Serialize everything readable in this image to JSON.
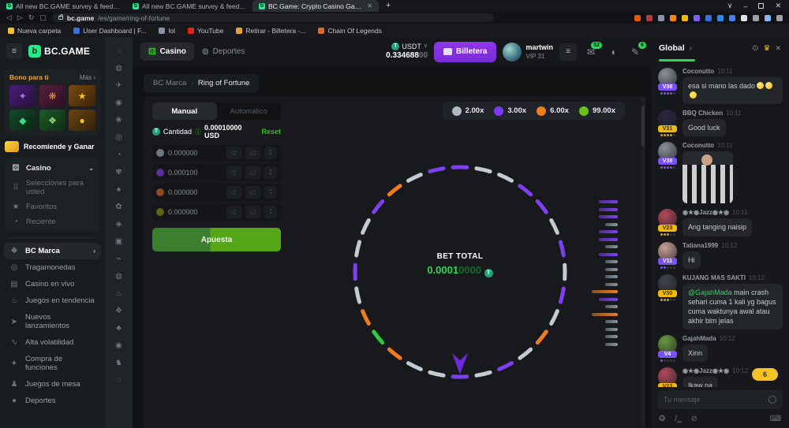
{
  "browser": {
    "tabs": [
      {
        "title": "All new BC.GAME survey & feedback r",
        "active": false
      },
      {
        "title": "All new BC.GAME survey & feedback r",
        "active": false
      },
      {
        "title": "BC.Game: Crypto Casino Games &",
        "active": true
      }
    ],
    "new_tab": "+",
    "url_domain": "bc.game",
    "url_path": "/es/game/ring-of-fortune",
    "ext_colors": [
      "#e8590c",
      "#b03a48",
      "#8a93a5",
      "#f6851b",
      "#f0b90b",
      "#7b61ff",
      "#3b6fe0",
      "#2f86eb",
      "#4a7bf7",
      "#dfe2e6",
      "#9aa0a6",
      "#8ab4f8",
      "#9aa0a6"
    ],
    "bookmarks": [
      {
        "label": "Nueva carpeta",
        "color": "#f5c323"
      },
      {
        "label": "User Dashboard | F...",
        "color": "#3b6fe0"
      },
      {
        "label": "lol",
        "color": "#8a93a5"
      },
      {
        "label": "YouTube",
        "color": "#e62117"
      },
      {
        "label": "Retirar - Billetera -...",
        "color": "#e2a13a"
      },
      {
        "label": "Chain Of Legends",
        "color": "#d86a2a"
      }
    ]
  },
  "sidebar": {
    "logo_letter": "b",
    "logo_text": "BC.GAME",
    "bonus_title": "Bono para ti",
    "bonus_more": "Más",
    "bonus_more_chev": "›",
    "tiles": [
      {
        "bg1": "#4a1d7a",
        "bg2": "#241038",
        "glyph": "✦",
        "fg": "#b06df5"
      },
      {
        "bg1": "#5a1f3f",
        "bg2": "#2a1020",
        "glyph": "❋",
        "fg": "#e08f3f"
      },
      {
        "bg1": "#7a4a12",
        "bg2": "#3a2408",
        "glyph": "★",
        "fg": "#f5c323"
      },
      {
        "bg1": "#134a2a",
        "bg2": "#0a2415",
        "glyph": "◆",
        "fg": "#3ddc84"
      },
      {
        "bg1": "#1d5a2a",
        "bg2": "#0e2d14",
        "glyph": "❖",
        "fg": "#8fe06a"
      },
      {
        "bg1": "#6a4410",
        "bg2": "#33210a",
        "glyph": "●",
        "fg": "#f5c323"
      }
    ],
    "referral": "Recomiende y Ganar",
    "casino_label": "Casino",
    "casino_items": [
      {
        "icon": "⠿",
        "label": "Selecciones para usted"
      },
      {
        "icon": "★",
        "label": "Favoritos"
      },
      {
        "icon": "◔",
        "label": "Reciente"
      }
    ],
    "nav_items": [
      {
        "icon": "❖",
        "label": "BC Marca",
        "active": true
      },
      {
        "icon": "◎",
        "label": "Tragamonedas",
        "active": false
      },
      {
        "icon": "▤",
        "label": "Casino en vivo",
        "active": false
      },
      {
        "icon": "♨",
        "label": "Juegos en tendencia",
        "active": false
      },
      {
        "icon": "➤",
        "label": "Nuevos lanzamientos",
        "active": false
      },
      {
        "icon": "∿",
        "label": "Alta volatilidad",
        "active": false
      },
      {
        "icon": "✦",
        "label": "Compra de funciones",
        "active": false
      },
      {
        "icon": "♟",
        "label": "Juegos de mesa",
        "active": false
      },
      {
        "icon": "●",
        "label": "Deportes",
        "active": false
      }
    ],
    "rail_icons": [
      "◌",
      "◍",
      "✈",
      "◉",
      "❀",
      "◎",
      "◔",
      "✾",
      "♠",
      "✿",
      "◈",
      "▣",
      "⌁",
      "◍",
      "♨",
      "❖",
      "♣",
      "◉",
      "♞",
      "◌"
    ]
  },
  "topbar": {
    "casino": "Casino",
    "deportes": "Deportes",
    "currency": "USDT",
    "currency_chev": "∨",
    "coin_letter": "T",
    "balance_main": "0.334688",
    "balance_sub": "00",
    "wallet": "Billetera",
    "username": "martwin",
    "vip": "VIP 31",
    "mail_badge": "52",
    "chat_badge": "6"
  },
  "breadcrumb": {
    "parent": "BC Marca",
    "sep": "›",
    "current": "Ring of Fortune"
  },
  "game": {
    "tab_manual": "Manual",
    "tab_auto": "Automático",
    "amount_label": "Cantidad",
    "amount_value": "0.00010000 USD",
    "reset": "Reset",
    "half": "/2",
    "double": "x2",
    "bet_rows": [
      {
        "color": "#6f7680",
        "value": "0.000000"
      },
      {
        "color": "#5b2d9e",
        "value": "0.000100"
      },
      {
        "color": "#8a4a22",
        "value": "0.000000"
      },
      {
        "color": "#5f6618",
        "value": "0.000000"
      }
    ],
    "bet_button": "Apuesta",
    "legend": [
      {
        "color": "#b0b8c2",
        "label": "2.00x"
      },
      {
        "color": "#7c3bf0",
        "label": "3.00x"
      },
      {
        "color": "#ef7c1d",
        "label": "6.00x"
      },
      {
        "color": "#67c21a",
        "label": "99.00x"
      }
    ],
    "bet_total_label": "BET TOTAL",
    "bet_total_main": "0.0001",
    "bet_total_sub": "0000",
    "wheel_colors": {
      "W": "#c3cad4",
      "P": "#7d3ff1",
      "O": "#f07c1d",
      "G": "#2ecc40"
    },
    "wheel_segments": [
      "P",
      "W",
      "W",
      "P",
      "P",
      "W",
      "P",
      "W",
      "P",
      "W",
      "O",
      "W",
      "P",
      "W",
      "P",
      "W",
      "W",
      "O",
      "G",
      "O",
      "W",
      "P",
      "W",
      "W",
      "P",
      "O",
      "W",
      "P"
    ],
    "history_widths": {
      "P": 24,
      "G": 16,
      "O": 33
    },
    "history": [
      "P",
      "P",
      "P",
      "G",
      "P",
      "P",
      "G",
      "P",
      "G",
      "G",
      "G",
      "G",
      "O",
      "P",
      "G",
      "O",
      "G",
      "G",
      "G",
      "G"
    ]
  },
  "chat": {
    "header": "Global",
    "header_chev": "›",
    "messages": [
      {
        "user": "Coconutto",
        "time": "10:11",
        "badge": "V38",
        "badge_bg": "#7a52f4",
        "badge_fg": "#ffffff",
        "avatar": "#8a8f98",
        "dots_filled": 4,
        "dot_color": "#7a52f4",
        "text": "esa si mano las dado",
        "emojis": 3
      },
      {
        "user": "BBQ Chicken",
        "time": "10:11",
        "badge": "V31",
        "badge_bg": "#f0b90b",
        "badge_fg": "#3a2c00",
        "avatar": "#2e2440",
        "dots_filled": 4,
        "dot_color": "#caa227",
        "text": "Good luck"
      },
      {
        "user": "Coconutto",
        "time": "10:11",
        "badge": "V38",
        "badge_bg": "#7a52f4",
        "badge_fg": "#ffffff",
        "avatar": "#8a8f98",
        "dots_filled": 4,
        "dot_color": "#7a52f4",
        "image": true
      },
      {
        "user": "◉★◉Jazz◉★◉",
        "time": "10:11",
        "badge": "V23",
        "badge_bg": "#f0b90b",
        "badge_fg": "#3a2c00",
        "avatar": "#b3495a",
        "dots_filled": 3,
        "dot_color": "#caa227",
        "text": "Ang tanging naisip"
      },
      {
        "user": "Tatiana1999",
        "time": "10:12",
        "badge": "V11",
        "badge_bg": "#7a52f4",
        "badge_fg": "#ffffff",
        "avatar": "#c7a096",
        "dots_filled": 2,
        "dot_color": "#7a52f4",
        "text": "Hi"
      },
      {
        "user": "KUJANG MAS SAKTI",
        "time": "10:12",
        "badge": "V30",
        "badge_bg": "#f0b90b",
        "badge_fg": "#3a2c00",
        "avatar": "#3f444b",
        "dots_filled": 3,
        "dot_color": "#caa227",
        "mention": "@GajahMada",
        "text": "main crash sehari cuma 1 kali yg bagus cuma waktunya awal atau akhir blm jelas"
      },
      {
        "user": "GajahMada",
        "time": "10:12",
        "badge": "V4",
        "badge_bg": "#7a52f4",
        "badge_fg": "#ffffff",
        "avatar": "#6a9a3f",
        "dots_filled": 1,
        "dot_color": "#7a52f4",
        "text": "Xinn"
      },
      {
        "user": "◉★◉Jazz◉★◉",
        "time": "10:12",
        "badge": "V23",
        "badge_bg": "#f0b90b",
        "badge_fg": "#3a2c00",
        "avatar": "#b3495a",
        "dots_filled": 3,
        "dot_color": "#caa227",
        "text": "Ikaw na"
      }
    ],
    "unread_pill": "6",
    "input_placeholder": "Tu mensaje"
  }
}
